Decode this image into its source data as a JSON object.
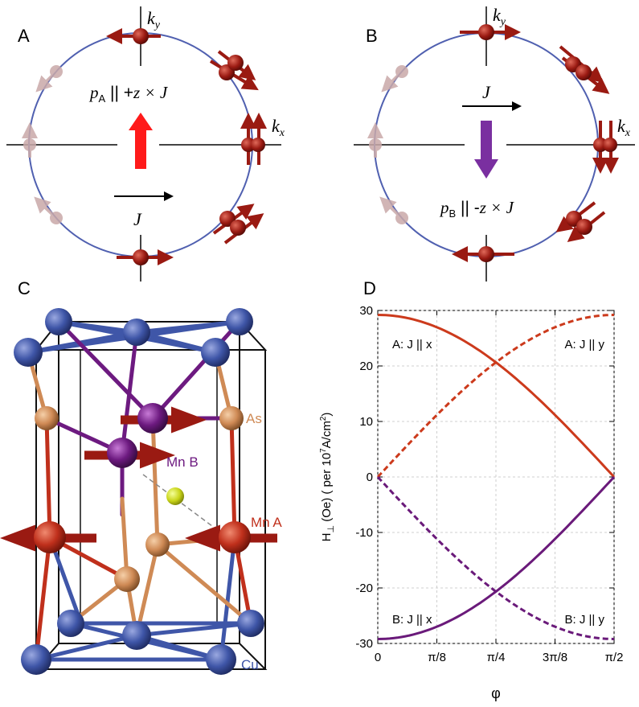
{
  "panels": {
    "a": {
      "letter": "A",
      "ky": "k",
      "ky_sub": "y",
      "kx": "k",
      "kx_sub": "x",
      "p_sym": "p",
      "p_sub": "A",
      "p_rel": " || +",
      "p_rhs": "z × J",
      "j_label": "J"
    },
    "b": {
      "letter": "B",
      "ky": "k",
      "ky_sub": "y",
      "kx": "k",
      "kx_sub": "x",
      "p_sym": "p",
      "p_sub": "B",
      "p_rel": " || -",
      "p_rhs": "z × J",
      "j_label": "J"
    },
    "c": {
      "letter": "C",
      "atom_as": "As",
      "atom_mnb": "Mn B",
      "atom_mna": "Mn A",
      "atom_cu": "Cu"
    },
    "d": {
      "letter": "D"
    }
  },
  "colors": {
    "orbit": "#5060b0",
    "spin": "#9a1a12",
    "faded": "#c9a9a9",
    "red_arrow": "#ff1a1a",
    "purple_arrow": "#7a2fa0",
    "cu": "#3f56a8",
    "as": "#cf8a55",
    "mna": "#c0301c",
    "mnb": "#6d1a80",
    "center": "#c8d418",
    "series_a": "#cc3a1c",
    "series_b": "#6a1a7a"
  },
  "chart_data": {
    "type": "line",
    "ylabel_prefix": "H",
    "ylabel_sub": "⊥",
    "ylabel_mid": " (Oe) ( per 10",
    "ylabel_sup": "7",
    "ylabel_end": "A/cm",
    "ylabel_sup2": "2",
    "ylabel_close": ")",
    "xlabel": "φ",
    "ylim": [
      -30,
      30
    ],
    "xlim": [
      0,
      1.5708
    ],
    "xticks": [
      {
        "v": 0,
        "label": "0"
      },
      {
        "v": 0.3927,
        "label": "π/8"
      },
      {
        "v": 0.7854,
        "label": "π/4"
      },
      {
        "v": 1.1781,
        "label": "3π/8"
      },
      {
        "v": 1.5708,
        "label": "π/2"
      }
    ],
    "yticks": [
      {
        "v": 30,
        "label": "30"
      },
      {
        "v": 20,
        "label": "20"
      },
      {
        "v": 10,
        "label": "10"
      },
      {
        "v": 0,
        "label": "0"
      },
      {
        "v": -10,
        "label": "-10"
      },
      {
        "v": -20,
        "label": "-20"
      },
      {
        "v": -30,
        "label": "-30"
      }
    ],
    "amplitude": 29.2,
    "series": [
      {
        "name": "A: J || x",
        "func": "cos",
        "sign": 1,
        "dashed": false,
        "color": "#cc3a1c"
      },
      {
        "name": "A: J || y",
        "func": "sin",
        "sign": 1,
        "dashed": true,
        "color": "#cc3a1c"
      },
      {
        "name": "B: J || x",
        "func": "cos",
        "sign": -1,
        "dashed": false,
        "color": "#6a1a7a"
      },
      {
        "name": "B: J || y",
        "func": "sin",
        "sign": -1,
        "dashed": true,
        "color": "#6a1a7a"
      }
    ]
  }
}
